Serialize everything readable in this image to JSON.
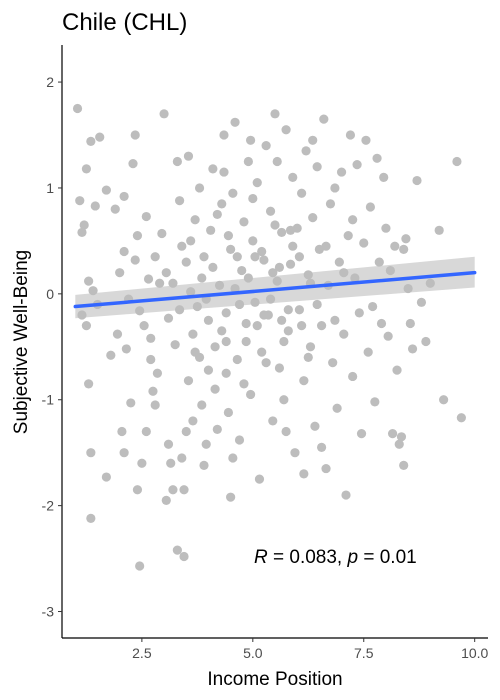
{
  "chart_data": {
    "type": "scatter",
    "title": "Chile (CHL)",
    "xlabel": "Income Position",
    "ylabel": "Subjective Well-Being",
    "xlim": [
      0.7,
      10.3
    ],
    "ylim": [
      -3.25,
      2.35
    ],
    "x_ticks": [
      2.5,
      5.0,
      7.5,
      10.0
    ],
    "x_tick_labels": [
      "2.5",
      "5.0",
      "7.5",
      "10.0"
    ],
    "y_ticks": [
      -3,
      -2,
      -1,
      0,
      1,
      2
    ],
    "y_tick_labels": [
      "-3",
      "-2",
      "-1",
      "0",
      "1",
      "2"
    ],
    "grid": false,
    "point_color": "#bdbdbd",
    "fit_color": "#3366ff",
    "band_color": "#9e9e9e",
    "annotation": {
      "r_symbol": "R",
      "r_text": " = 0.083, ",
      "p_symbol": "p",
      "p_text": " = 0.01"
    },
    "regression": {
      "x": [
        1.0,
        10.0
      ],
      "y": [
        -0.12,
        0.2
      ],
      "ci_lower": [
        -0.23,
        0.06
      ],
      "ci_upper": [
        -0.01,
        0.35
      ]
    },
    "points": [
      {
        "x": 1.05,
        "y": 1.75
      },
      {
        "x": 1.35,
        "y": 1.44
      },
      {
        "x": 1.55,
        "y": 1.48
      },
      {
        "x": 1.25,
        "y": 1.18
      },
      {
        "x": 1.7,
        "y": 0.98
      },
      {
        "x": 1.1,
        "y": 0.88
      },
      {
        "x": 1.2,
        "y": 0.65
      },
      {
        "x": 1.15,
        "y": 0.58
      },
      {
        "x": 1.45,
        "y": 0.83
      },
      {
        "x": 1.9,
        "y": 0.8
      },
      {
        "x": 1.3,
        "y": 0.12
      },
      {
        "x": 1.4,
        "y": 0.03
      },
      {
        "x": 1.15,
        "y": -0.2
      },
      {
        "x": 1.25,
        "y": -0.3
      },
      {
        "x": 1.5,
        "y": -0.1
      },
      {
        "x": 1.3,
        "y": -0.85
      },
      {
        "x": 1.35,
        "y": -1.5
      },
      {
        "x": 1.35,
        "y": -2.12
      },
      {
        "x": 1.7,
        "y": -1.73
      },
      {
        "x": 1.8,
        "y": -0.58
      },
      {
        "x": 1.95,
        "y": -0.38
      },
      {
        "x": 2.1,
        "y": 0.4
      },
      {
        "x": 2.0,
        "y": 0.2
      },
      {
        "x": 2.2,
        "y": -0.05
      },
      {
        "x": 2.15,
        "y": -0.52
      },
      {
        "x": 2.05,
        "y": -1.3
      },
      {
        "x": 2.1,
        "y": -1.5
      },
      {
        "x": 2.25,
        "y": -1.03
      },
      {
        "x": 2.3,
        "y": 1.23
      },
      {
        "x": 2.4,
        "y": 0.55
      },
      {
        "x": 2.35,
        "y": 0.32
      },
      {
        "x": 2.45,
        "y": -0.16
      },
      {
        "x": 2.4,
        "y": -1.85
      },
      {
        "x": 2.5,
        "y": -1.6
      },
      {
        "x": 2.45,
        "y": -2.57
      },
      {
        "x": 2.1,
        "y": 0.92
      },
      {
        "x": 2.35,
        "y": 1.5
      },
      {
        "x": 2.6,
        "y": 0.73
      },
      {
        "x": 2.65,
        "y": 0.14
      },
      {
        "x": 2.7,
        "y": -0.42
      },
      {
        "x": 2.6,
        "y": -1.3
      },
      {
        "x": 2.75,
        "y": -0.92
      },
      {
        "x": 2.8,
        "y": -1.05
      },
      {
        "x": 2.7,
        "y": -0.62
      },
      {
        "x": 2.85,
        "y": -0.75
      },
      {
        "x": 2.9,
        "y": 0.1
      },
      {
        "x": 3.0,
        "y": 1.7
      },
      {
        "x": 2.95,
        "y": 0.57
      },
      {
        "x": 3.05,
        "y": 0.2
      },
      {
        "x": 3.1,
        "y": -0.23
      },
      {
        "x": 3.15,
        "y": -1.6
      },
      {
        "x": 3.2,
        "y": -1.85
      },
      {
        "x": 3.05,
        "y": -1.95
      },
      {
        "x": 3.1,
        "y": -1.42
      },
      {
        "x": 3.25,
        "y": -0.48
      },
      {
        "x": 3.3,
        "y": 1.25
      },
      {
        "x": 3.35,
        "y": 0.88
      },
      {
        "x": 3.4,
        "y": 0.45
      },
      {
        "x": 3.3,
        "y": -2.42
      },
      {
        "x": 3.45,
        "y": -2.48
      },
      {
        "x": 3.4,
        "y": -1.55
      },
      {
        "x": 3.5,
        "y": -1.3
      },
      {
        "x": 3.55,
        "y": -0.82
      },
      {
        "x": 3.6,
        "y": 0.02
      },
      {
        "x": 3.65,
        "y": -0.38
      },
      {
        "x": 3.55,
        "y": 1.3
      },
      {
        "x": 3.7,
        "y": 0.7
      },
      {
        "x": 3.75,
        "y": -0.12
      },
      {
        "x": 3.8,
        "y": -0.6
      },
      {
        "x": 3.85,
        "y": -1.05
      },
      {
        "x": 3.9,
        "y": -1.62
      },
      {
        "x": 3.95,
        "y": -1.42
      },
      {
        "x": 3.8,
        "y": 1.0
      },
      {
        "x": 3.9,
        "y": 0.35
      },
      {
        "x": 4.0,
        "y": -0.25
      },
      {
        "x": 4.05,
        "y": 0.6
      },
      {
        "x": 4.1,
        "y": 1.18
      },
      {
        "x": 4.15,
        "y": -0.9
      },
      {
        "x": 4.2,
        "y": -1.28
      },
      {
        "x": 4.0,
        "y": -0.72
      },
      {
        "x": 4.25,
        "y": 0.08
      },
      {
        "x": 4.3,
        "y": 0.85
      },
      {
        "x": 4.35,
        "y": 1.5
      },
      {
        "x": 4.4,
        "y": -0.45
      },
      {
        "x": 4.45,
        "y": -1.12
      },
      {
        "x": 4.5,
        "y": -1.92
      },
      {
        "x": 4.4,
        "y": -0.18
      },
      {
        "x": 4.5,
        "y": 0.42
      },
      {
        "x": 4.55,
        "y": 0.95
      },
      {
        "x": 4.6,
        "y": 1.62
      },
      {
        "x": 4.65,
        "y": -0.62
      },
      {
        "x": 4.7,
        "y": -1.38
      },
      {
        "x": 4.75,
        "y": 0.22
      },
      {
        "x": 4.8,
        "y": 0.68
      },
      {
        "x": 4.85,
        "y": -0.28
      },
      {
        "x": 4.9,
        "y": 1.25
      },
      {
        "x": 4.95,
        "y": -0.95
      },
      {
        "x": 5.0,
        "y": 0.5
      },
      {
        "x": 5.05,
        "y": -0.08
      },
      {
        "x": 5.1,
        "y": 1.05
      },
      {
        "x": 5.15,
        "y": -1.75
      },
      {
        "x": 5.2,
        "y": -0.55
      },
      {
        "x": 5.25,
        "y": 0.32
      },
      {
        "x": 5.3,
        "y": 1.4
      },
      {
        "x": 5.35,
        "y": -0.2
      },
      {
        "x": 5.4,
        "y": 0.78
      },
      {
        "x": 5.45,
        "y": -1.2
      },
      {
        "x": 5.5,
        "y": 1.7
      },
      {
        "x": 5.55,
        "y": 0.12
      },
      {
        "x": 5.6,
        "y": -0.7
      },
      {
        "x": 5.65,
        "y": 0.58
      },
      {
        "x": 5.7,
        "y": -1.0
      },
      {
        "x": 5.75,
        "y": 1.55
      },
      {
        "x": 5.8,
        "y": -0.35
      },
      {
        "x": 5.85,
        "y": 0.28
      },
      {
        "x": 5.9,
        "y": 1.1
      },
      {
        "x": 5.95,
        "y": -1.5
      },
      {
        "x": 6.0,
        "y": 0.62
      },
      {
        "x": 6.05,
        "y": -0.15
      },
      {
        "x": 6.1,
        "y": 0.95
      },
      {
        "x": 6.15,
        "y": -0.82
      },
      {
        "x": 6.2,
        "y": 1.35
      },
      {
        "x": 6.25,
        "y": 0.18
      },
      {
        "x": 6.3,
        "y": -0.5
      },
      {
        "x": 6.35,
        "y": 0.72
      },
      {
        "x": 6.4,
        "y": -1.25
      },
      {
        "x": 6.45,
        "y": 1.2
      },
      {
        "x": 6.5,
        "y": 0.42
      },
      {
        "x": 6.55,
        "y": -0.3
      },
      {
        "x": 6.6,
        "y": 1.65
      },
      {
        "x": 6.65,
        "y": -1.65
      },
      {
        "x": 6.7,
        "y": 0.08
      },
      {
        "x": 6.75,
        "y": 0.85
      },
      {
        "x": 6.8,
        "y": -0.65
      },
      {
        "x": 6.85,
        "y": 1.0
      },
      {
        "x": 6.9,
        "y": -1.08
      },
      {
        "x": 6.95,
        "y": 0.3
      },
      {
        "x": 7.0,
        "y": 1.15
      },
      {
        "x": 7.05,
        "y": -0.38
      },
      {
        "x": 7.1,
        "y": -1.9
      },
      {
        "x": 7.15,
        "y": 0.55
      },
      {
        "x": 7.2,
        "y": 1.5
      },
      {
        "x": 7.25,
        "y": -0.78
      },
      {
        "x": 7.3,
        "y": 0.15
      },
      {
        "x": 7.35,
        "y": 1.22
      },
      {
        "x": 7.4,
        "y": -0.18
      },
      {
        "x": 7.45,
        "y": -1.32
      },
      {
        "x": 7.5,
        "y": 0.48
      },
      {
        "x": 7.55,
        "y": 1.45
      },
      {
        "x": 7.6,
        "y": -0.55
      },
      {
        "x": 7.65,
        "y": 0.82
      },
      {
        "x": 7.7,
        "y": -0.12
      },
      {
        "x": 7.75,
        "y": -1.02
      },
      {
        "x": 7.8,
        "y": 1.28
      },
      {
        "x": 7.85,
        "y": 0.3
      },
      {
        "x": 7.9,
        "y": -0.28
      },
      {
        "x": 7.95,
        "y": 1.1
      },
      {
        "x": 8.0,
        "y": 0.62
      },
      {
        "x": 8.05,
        "y": -0.4
      },
      {
        "x": 8.1,
        "y": 0.22
      },
      {
        "x": 8.15,
        "y": -1.32
      },
      {
        "x": 8.2,
        "y": 0.45
      },
      {
        "x": 8.25,
        "y": -0.72
      },
      {
        "x": 8.3,
        "y": -1.42
      },
      {
        "x": 8.35,
        "y": -1.35
      },
      {
        "x": 8.4,
        "y": -1.62
      },
      {
        "x": 8.45,
        "y": 0.52
      },
      {
        "x": 8.55,
        "y": -0.28
      },
      {
        "x": 8.6,
        "y": -0.52
      },
      {
        "x": 8.7,
        "y": 1.07
      },
      {
        "x": 8.4,
        "y": 0.42
      },
      {
        "x": 8.5,
        "y": 0.05
      },
      {
        "x": 9.2,
        "y": 0.6
      },
      {
        "x": 9.6,
        "y": 1.25
      },
      {
        "x": 9.3,
        "y": -1.0
      },
      {
        "x": 9.7,
        "y": -1.17
      },
      {
        "x": 8.9,
        "y": -0.45
      },
      {
        "x": 8.8,
        "y": -0.08
      },
      {
        "x": 9.0,
        "y": 0.1
      },
      {
        "x": 4.1,
        "y": 0.25
      },
      {
        "x": 4.3,
        "y": -0.35
      },
      {
        "x": 4.6,
        "y": 0.05
      },
      {
        "x": 4.7,
        "y": -0.1
      },
      {
        "x": 4.9,
        "y": 0.15
      },
      {
        "x": 5.1,
        "y": -0.3
      },
      {
        "x": 5.2,
        "y": 0.4
      },
      {
        "x": 5.4,
        "y": -0.05
      },
      {
        "x": 5.6,
        "y": 0.25
      },
      {
        "x": 5.8,
        "y": -0.15
      },
      {
        "x": 4.2,
        "y": 0.75
      },
      {
        "x": 4.4,
        "y": -0.75
      },
      {
        "x": 4.8,
        "y": -0.85
      },
      {
        "x": 5.0,
        "y": 0.9
      },
      {
        "x": 5.3,
        "y": -0.65
      },
      {
        "x": 5.5,
        "y": 0.65
      },
      {
        "x": 5.7,
        "y": -0.45
      },
      {
        "x": 5.9,
        "y": 0.45
      },
      {
        "x": 6.1,
        "y": -0.3
      },
      {
        "x": 6.3,
        "y": 0.1
      },
      {
        "x": 3.6,
        "y": 0.5
      },
      {
        "x": 3.7,
        "y": -0.55
      },
      {
        "x": 3.85,
        "y": 0.15
      },
      {
        "x": 3.95,
        "y": -0.05
      },
      {
        "x": 4.15,
        "y": -0.5
      },
      {
        "x": 4.45,
        "y": 0.55
      },
      {
        "x": 4.65,
        "y": 0.35
      },
      {
        "x": 4.85,
        "y": -0.45
      },
      {
        "x": 5.05,
        "y": 0.35
      },
      {
        "x": 5.25,
        "y": -0.2
      },
      {
        "x": 5.45,
        "y": 0.2
      },
      {
        "x": 5.65,
        "y": -0.25
      },
      {
        "x": 5.85,
        "y": 0.6
      },
      {
        "x": 6.05,
        "y": 0.35
      },
      {
        "x": 6.25,
        "y": -0.6
      },
      {
        "x": 6.45,
        "y": -0.1
      },
      {
        "x": 6.65,
        "y": 0.45
      },
      {
        "x": 6.85,
        "y": -0.25
      },
      {
        "x": 7.05,
        "y": 0.2
      },
      {
        "x": 7.25,
        "y": 0.7
      },
      {
        "x": 3.2,
        "y": 0.1
      },
      {
        "x": 3.35,
        "y": -0.15
      },
      {
        "x": 3.5,
        "y": 0.3
      },
      {
        "x": 2.8,
        "y": 0.35
      },
      {
        "x": 2.55,
        "y": -0.3
      },
      {
        "x": 4.55,
        "y": -1.55
      },
      {
        "x": 4.35,
        "y": 1.15
      },
      {
        "x": 5.55,
        "y": 1.25
      },
      {
        "x": 5.75,
        "y": -1.3
      },
      {
        "x": 6.15,
        "y": -1.7
      },
      {
        "x": 3.45,
        "y": -1.85
      },
      {
        "x": 3.65,
        "y": -1.2
      },
      {
        "x": 4.95,
        "y": 1.45
      },
      {
        "x": 6.35,
        "y": 1.45
      },
      {
        "x": 6.55,
        "y": -1.45
      }
    ]
  }
}
